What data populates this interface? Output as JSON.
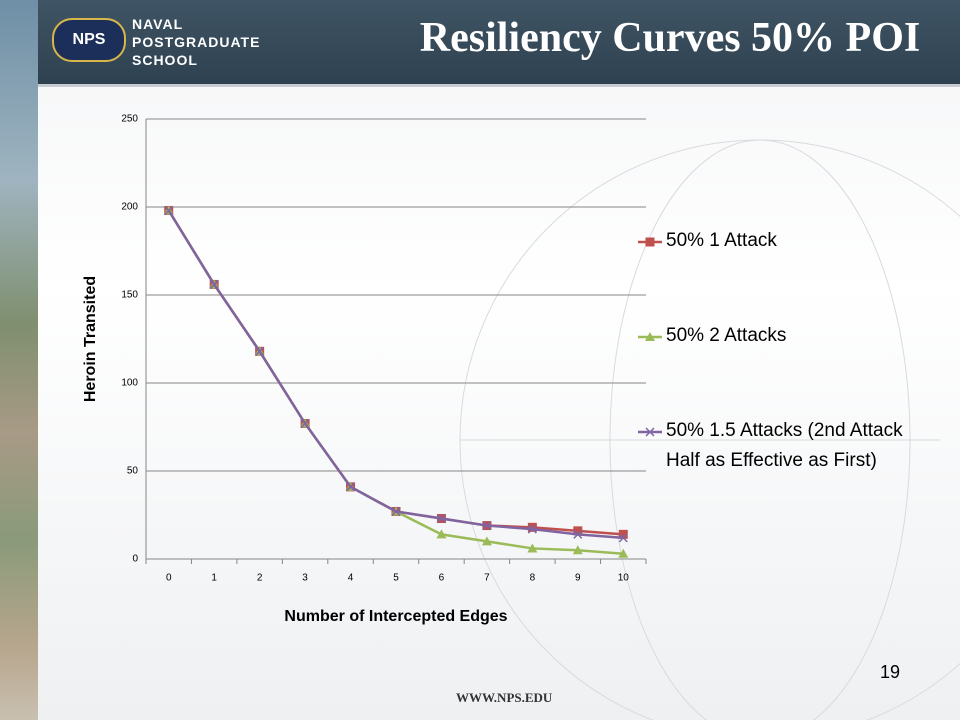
{
  "header": {
    "org_lines": [
      "NAVAL",
      "POSTGRADUATE",
      "SCHOOL"
    ],
    "badge": "NPS",
    "title": "Resiliency Curves 50% POI"
  },
  "chart_data": {
    "type": "line",
    "x": [
      0,
      1,
      2,
      3,
      4,
      5,
      6,
      7,
      8,
      9,
      10
    ],
    "xlabel": "Number of Intercepted Edges",
    "ylabel": "Heroin Transited",
    "ylim": [
      0,
      250
    ],
    "yticks": [
      0,
      50,
      100,
      150,
      200,
      250
    ],
    "grid": true,
    "legend": "right",
    "series": [
      {
        "name": "50% 1 Attack",
        "color": "#c0504d",
        "marker": "square",
        "values": [
          198,
          156,
          118,
          77,
          41,
          27,
          23,
          19,
          18,
          16,
          14
        ]
      },
      {
        "name": "50% 2 Attacks",
        "color": "#9bbb59",
        "marker": "triangle",
        "values": [
          198,
          156,
          118,
          77,
          41,
          27,
          14,
          10,
          6,
          5,
          3
        ]
      },
      {
        "name": "50% 1.5 Attacks (2nd Attack Half as Effective as First)",
        "color": "#8064a2",
        "marker": "x",
        "values": [
          198,
          156,
          118,
          77,
          41,
          27,
          23,
          19,
          17,
          14,
          12
        ]
      }
    ]
  },
  "footer": {
    "url": "WWW.NPS.EDU",
    "page": "19"
  }
}
